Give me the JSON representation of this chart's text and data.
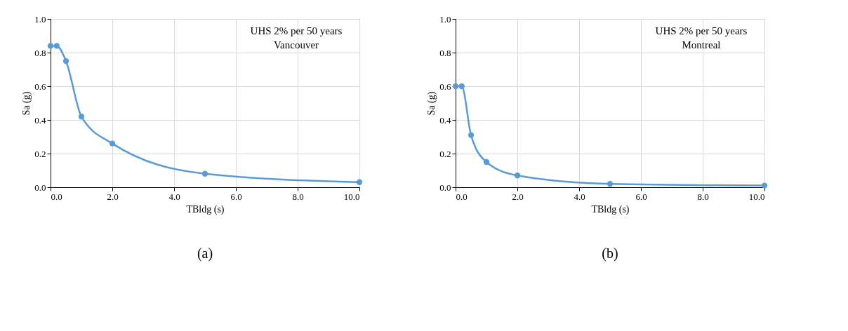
{
  "chart_data": [
    {
      "type": "line",
      "x": [
        0.0,
        0.2,
        0.5,
        1.0,
        2.0,
        5.0,
        10.0
      ],
      "series": [
        {
          "color": "#5b9bd5",
          "values": [
            0.84,
            0.84,
            0.75,
            0.42,
            0.26,
            0.08,
            0.03
          ]
        }
      ],
      "xlabel": "TBldg (s)",
      "ylabel": "Sa (g)",
      "xlim": [
        0,
        10
      ],
      "xticks": [
        {
          "value": 0,
          "label": "0.0"
        },
        {
          "value": 2,
          "label": "2.0"
        },
        {
          "value": 4,
          "label": "4.0"
        },
        {
          "value": 6,
          "label": "6.0"
        },
        {
          "value": 8,
          "label": "8.0"
        },
        {
          "value": 10,
          "label": "10.0"
        }
      ],
      "ylim": [
        0,
        1
      ],
      "yticks": [
        {
          "value": 0,
          "label": "0.0"
        },
        {
          "value": 0.2,
          "label": "0.2"
        },
        {
          "value": 0.4,
          "label": "0.4"
        },
        {
          "value": 0.6,
          "label": "0.6"
        },
        {
          "value": 0.8,
          "label": "0.8"
        },
        {
          "value": 1,
          "label": "1.0"
        }
      ],
      "grid": true,
      "marker": "circle",
      "line_style": "solid",
      "annotations": [
        "UHS  2% per 50 years",
        "Vancouver",
        "(a)"
      ]
    },
    {
      "type": "line",
      "x": [
        0.0,
        0.2,
        0.5,
        1.0,
        2.0,
        5.0,
        10.0
      ],
      "series": [
        {
          "color": "#5b9bd5",
          "values": [
            0.6,
            0.6,
            0.31,
            0.15,
            0.07,
            0.02,
            0.01
          ]
        }
      ],
      "xlabel": "TBldg (s)",
      "ylabel": "Sa (g)",
      "xlim": [
        0,
        10
      ],
      "xticks": [
        {
          "value": 0,
          "label": "0.0"
        },
        {
          "value": 2,
          "label": "2.0"
        },
        {
          "value": 4,
          "label": "4.0"
        },
        {
          "value": 6,
          "label": "6.0"
        },
        {
          "value": 8,
          "label": "8.0"
        },
        {
          "value": 10,
          "label": "10.0"
        }
      ],
      "ylim": [
        0,
        1
      ],
      "yticks": [
        {
          "value": 0,
          "label": "0.0"
        },
        {
          "value": 0.2,
          "label": "0.2"
        },
        {
          "value": 0.4,
          "label": "0.4"
        },
        {
          "value": 0.6,
          "label": "0.6"
        },
        {
          "value": 0.8,
          "label": "0.8"
        },
        {
          "value": 1,
          "label": "1.0"
        }
      ],
      "grid": true,
      "marker": "circle",
      "line_style": "solid",
      "annotations": [
        "UHS  2% per 50 years",
        "Montreal",
        "(b)"
      ]
    }
  ]
}
